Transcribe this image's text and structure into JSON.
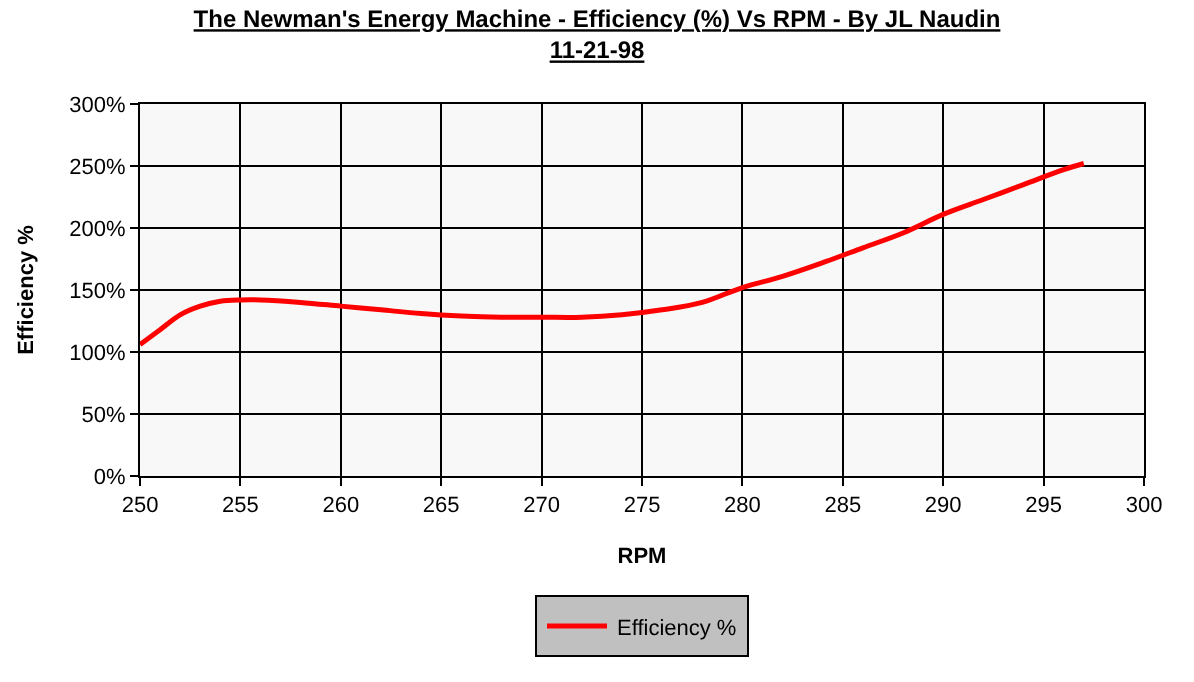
{
  "chart_data": {
    "type": "line",
    "title": "The Newman's Energy Machine - Efficiency (%) Vs RPM - By JL Naudin",
    "subtitle": "11-21-98",
    "xlabel": "RPM",
    "ylabel": "Efficiency %",
    "x": [
      250,
      251,
      252,
      253,
      254,
      255,
      256,
      258,
      260,
      262,
      264,
      266,
      268,
      270,
      272,
      274,
      276,
      278,
      280,
      282,
      284,
      286,
      288,
      290,
      292,
      294,
      296,
      297
    ],
    "series": [
      {
        "name": "Efficiency %",
        "color": "#ff0000",
        "values": [
          106,
          118,
          130,
          137,
          141,
          142,
          142,
          140,
          137,
          134,
          131,
          129,
          128,
          128,
          128,
          130,
          134,
          140,
          152,
          161,
          172,
          184,
          196,
          211,
          223,
          235,
          247,
          252
        ]
      }
    ],
    "xlim": [
      250,
      300
    ],
    "xticks": [
      250,
      255,
      260,
      265,
      270,
      275,
      280,
      285,
      290,
      295,
      300
    ],
    "ylim": [
      0,
      300
    ],
    "yticks": [
      {
        "value": 0,
        "label": "0%"
      },
      {
        "value": 50,
        "label": "50%"
      },
      {
        "value": 100,
        "label": "100%"
      },
      {
        "value": 150,
        "label": "150%"
      },
      {
        "value": 200,
        "label": "200%"
      },
      {
        "value": 250,
        "label": "250%"
      },
      {
        "value": 300,
        "label": "300%"
      }
    ],
    "grid": true,
    "legend": "bottom",
    "marker": "none",
    "line_style": "solid"
  }
}
